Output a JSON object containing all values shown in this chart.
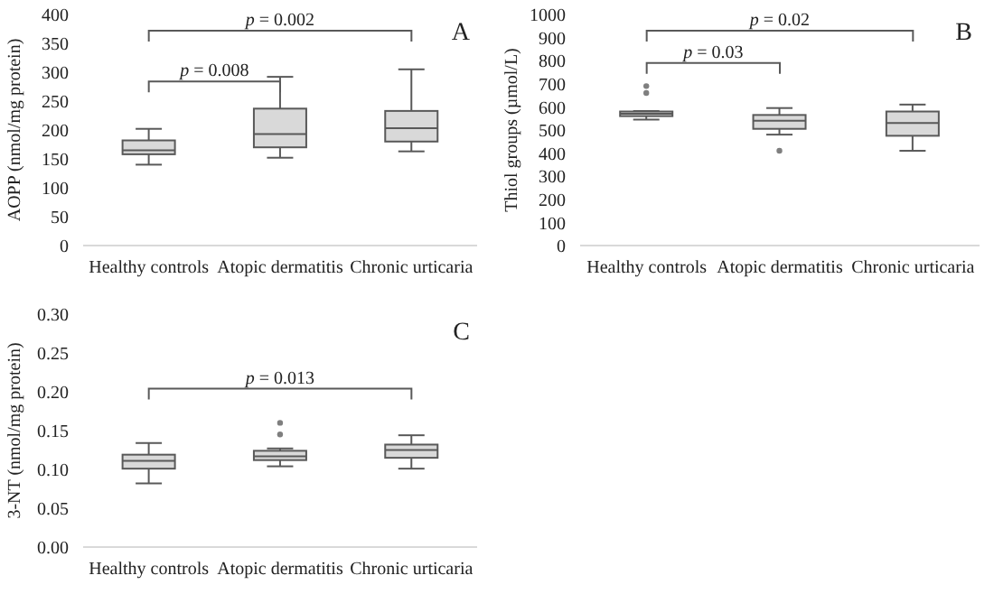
{
  "chart_data": [
    {
      "type": "box",
      "title": "A",
      "categories": [
        "Healthy controls",
        "Atopic dermatitis",
        "Chronic urticaria"
      ],
      "ylabel": "AOPP (nmol/mg protein)",
      "ylim": [
        0,
        400
      ],
      "yticks": [
        0,
        50,
        100,
        150,
        200,
        250,
        300,
        350,
        400
      ],
      "annotations": [
        "p = 0.002",
        "p = 0.008"
      ],
      "series": [
        {
          "color": "#d9d9d9",
          "boxes": [
            {
              "low": 140,
              "q1": 158,
              "median": 165,
              "q3": 182,
              "high": 202
            },
            {
              "low": 152,
              "q1": 170,
              "median": 193,
              "q3": 237,
              "high": 292
            },
            {
              "low": 163,
              "q1": 180,
              "median": 203,
              "q3": 233,
              "high": 305
            }
          ]
        }
      ]
    },
    {
      "type": "box",
      "title": "B",
      "categories": [
        "Healthy controls",
        "Atopic dermatitis",
        "Chronic urticaria"
      ],
      "ylabel": "Thiol groups (µmol/L)",
      "ylim": [
        0,
        1000
      ],
      "yticks": [
        0,
        100,
        200,
        300,
        400,
        500,
        600,
        700,
        800,
        900,
        1000
      ],
      "annotations": [
        "p = 0.02",
        "p = 0.03"
      ],
      "series": [
        {
          "color": "#d9d9d9",
          "boxes": [
            {
              "low": 545,
              "q1": 560,
              "median": 570,
              "q3": 580,
              "high": 582,
              "outliers": [
                660,
                690
              ]
            },
            {
              "low": 480,
              "q1": 505,
              "median": 540,
              "q3": 565,
              "high": 595,
              "outliers": [
                410
              ]
            },
            {
              "low": 410,
              "q1": 475,
              "median": 530,
              "q3": 580,
              "high": 610
            }
          ]
        }
      ]
    },
    {
      "type": "box",
      "title": "C",
      "categories": [
        "Healthy controls",
        "Atopic dermatitis",
        "Chronic urticaria"
      ],
      "ylabel": "3-NT (nmol/mg protein)",
      "ylim": [
        0,
        0.3
      ],
      "yticks": [
        {
          "value": 0,
          "label": "0.00"
        },
        {
          "value": 0.05,
          "label": "0.05"
        },
        {
          "value": 0.1,
          "label": "0.10"
        },
        {
          "value": 0.15,
          "label": "0.15"
        },
        {
          "value": 0.2,
          "label": "0.20"
        },
        {
          "value": 0.25,
          "label": "0.25"
        },
        {
          "value": 0.3,
          "label": "0.30"
        }
      ],
      "annotations": [
        "p = 0.013"
      ],
      "series": [
        {
          "color": "#d9d9d9",
          "boxes": [
            {
              "low": 0.082,
              "q1": 0.101,
              "median": 0.111,
              "q3": 0.119,
              "high": 0.134
            },
            {
              "low": 0.104,
              "q1": 0.112,
              "median": 0.117,
              "q3": 0.124,
              "high": 0.127,
              "outliers": [
                0.145,
                0.16
              ]
            },
            {
              "low": 0.101,
              "q1": 0.115,
              "median": 0.125,
              "q3": 0.132,
              "high": 0.144
            }
          ]
        }
      ]
    }
  ]
}
